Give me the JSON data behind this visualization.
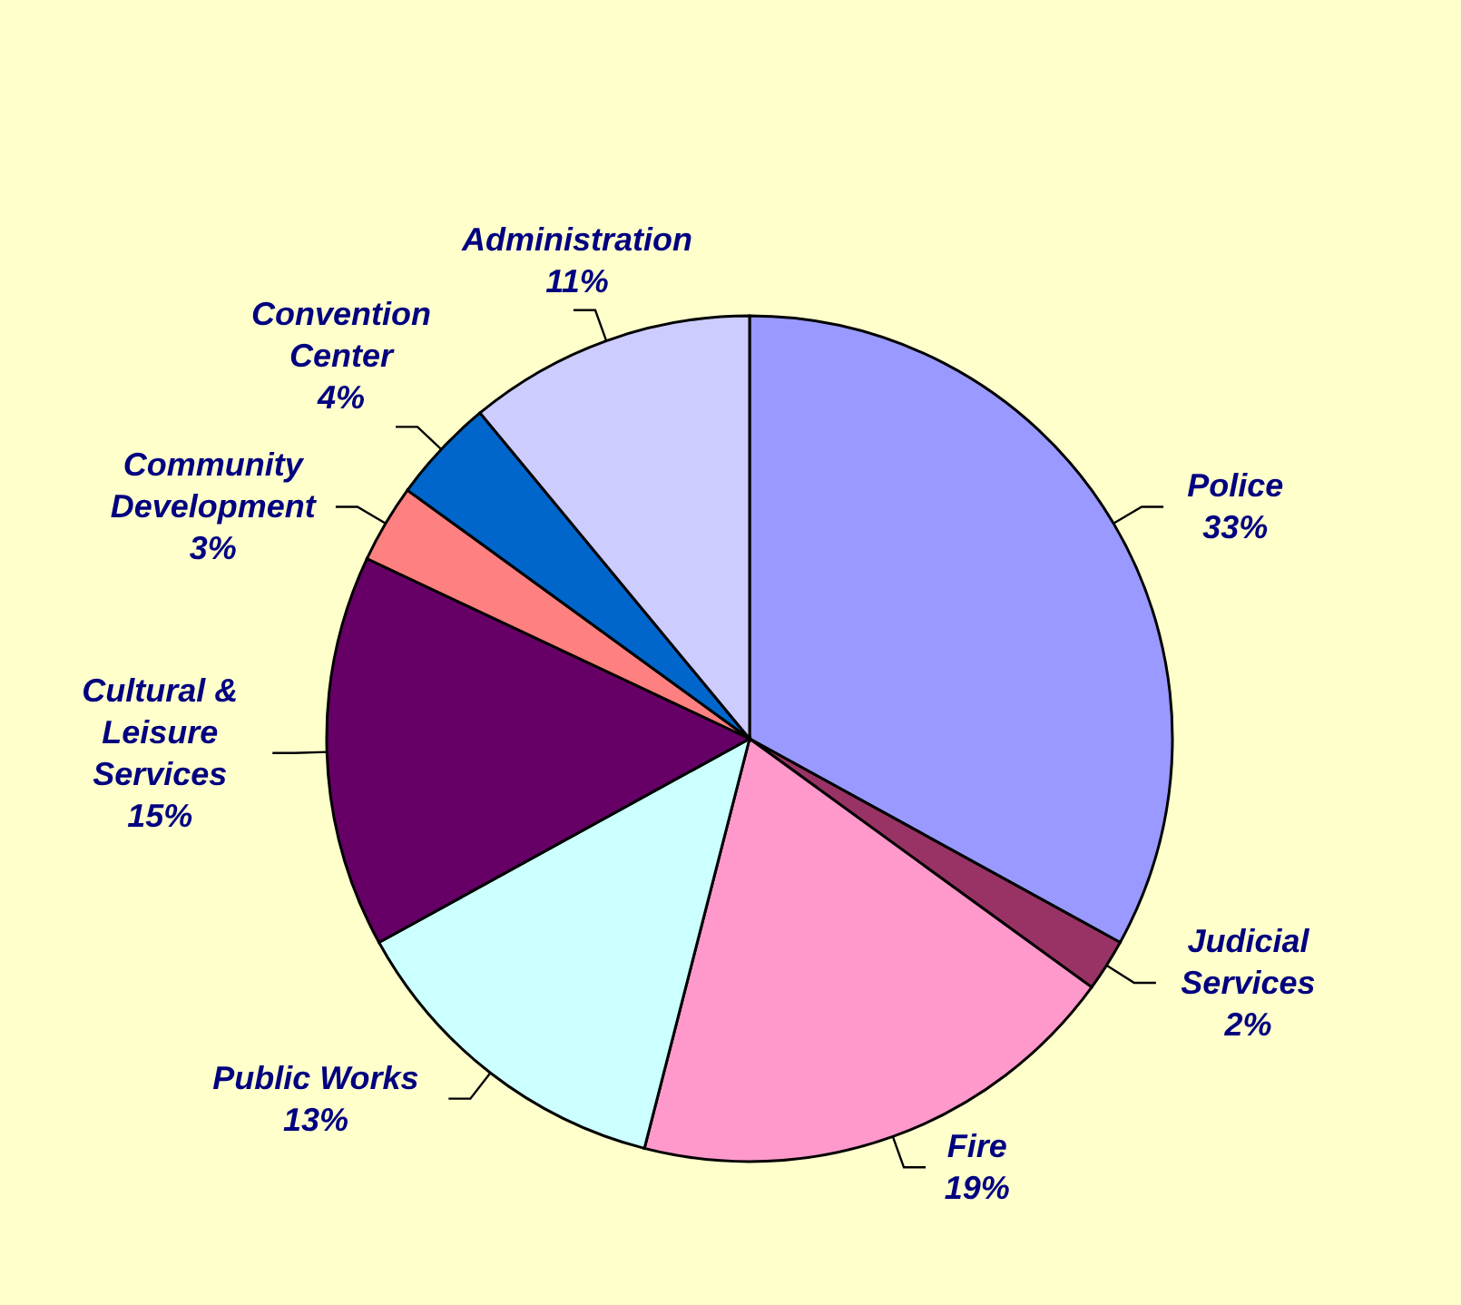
{
  "chart_data": {
    "type": "pie",
    "categories": [
      "Police",
      "Judicial Services",
      "Fire",
      "Public Works",
      "Cultural & Leisure Services",
      "Community Development",
      "Convention Center",
      "Administration"
    ],
    "values": [
      33,
      2,
      19,
      13,
      15,
      3,
      4,
      11
    ],
    "value_labels": [
      "33%",
      "2%",
      "19%",
      "13%",
      "15%",
      "3%",
      "4%",
      "11%"
    ],
    "colors": [
      "#9999ff",
      "#993366",
      "#ff99cc",
      "#ccffff",
      "#660066",
      "#ff8080",
      "#0066cc",
      "#ccccff"
    ]
  }
}
